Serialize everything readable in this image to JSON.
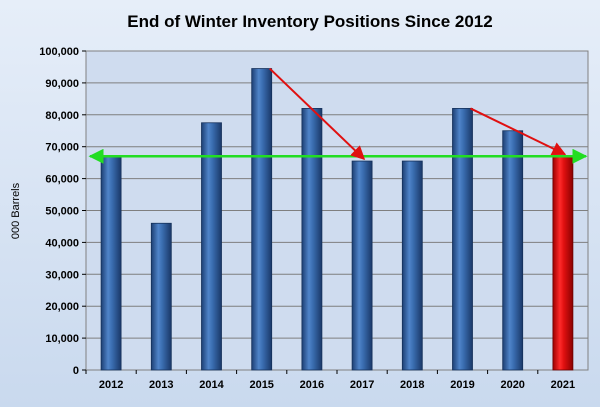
{
  "chart_data": {
    "type": "bar",
    "title": "End of Winter Inventory Positions Since 2012",
    "xlabel": "",
    "ylabel": "000 Barrels",
    "categories": [
      "2012",
      "2013",
      "2014",
      "2015",
      "2016",
      "2017",
      "2018",
      "2019",
      "2020",
      "2021"
    ],
    "values": [
      67000,
      46000,
      77500,
      94500,
      82000,
      65500,
      65500,
      82000,
      75000,
      67000
    ],
    "highlight_index": 9,
    "ylim": [
      0,
      100000
    ],
    "yticks": [
      0,
      10000,
      20000,
      30000,
      40000,
      50000,
      60000,
      70000,
      80000,
      90000,
      100000
    ],
    "ytick_labels": [
      "0",
      "10,000",
      "20,000",
      "30,000",
      "40,000",
      "50,000",
      "60,000",
      "70,000",
      "80,000",
      "90,000",
      "100,000"
    ],
    "grid": true,
    "legend": "none",
    "colors": {
      "bar": "#2e5c9e",
      "highlight_bar": "#e01010",
      "reference_line": "#22dd22",
      "trend_arrow": "#e01010",
      "plot_background": "#cfdcef",
      "page_background": "#d9e6f5"
    },
    "reference_line": {
      "value": 67000,
      "style": "double-arrow"
    },
    "trend_arrows": [
      {
        "from": "2015",
        "to": "2017",
        "from_value": 94500,
        "to_value": 65500
      },
      {
        "from": "2019",
        "to": "2021",
        "from_value": 82000,
        "to_value": 67000
      }
    ]
  }
}
